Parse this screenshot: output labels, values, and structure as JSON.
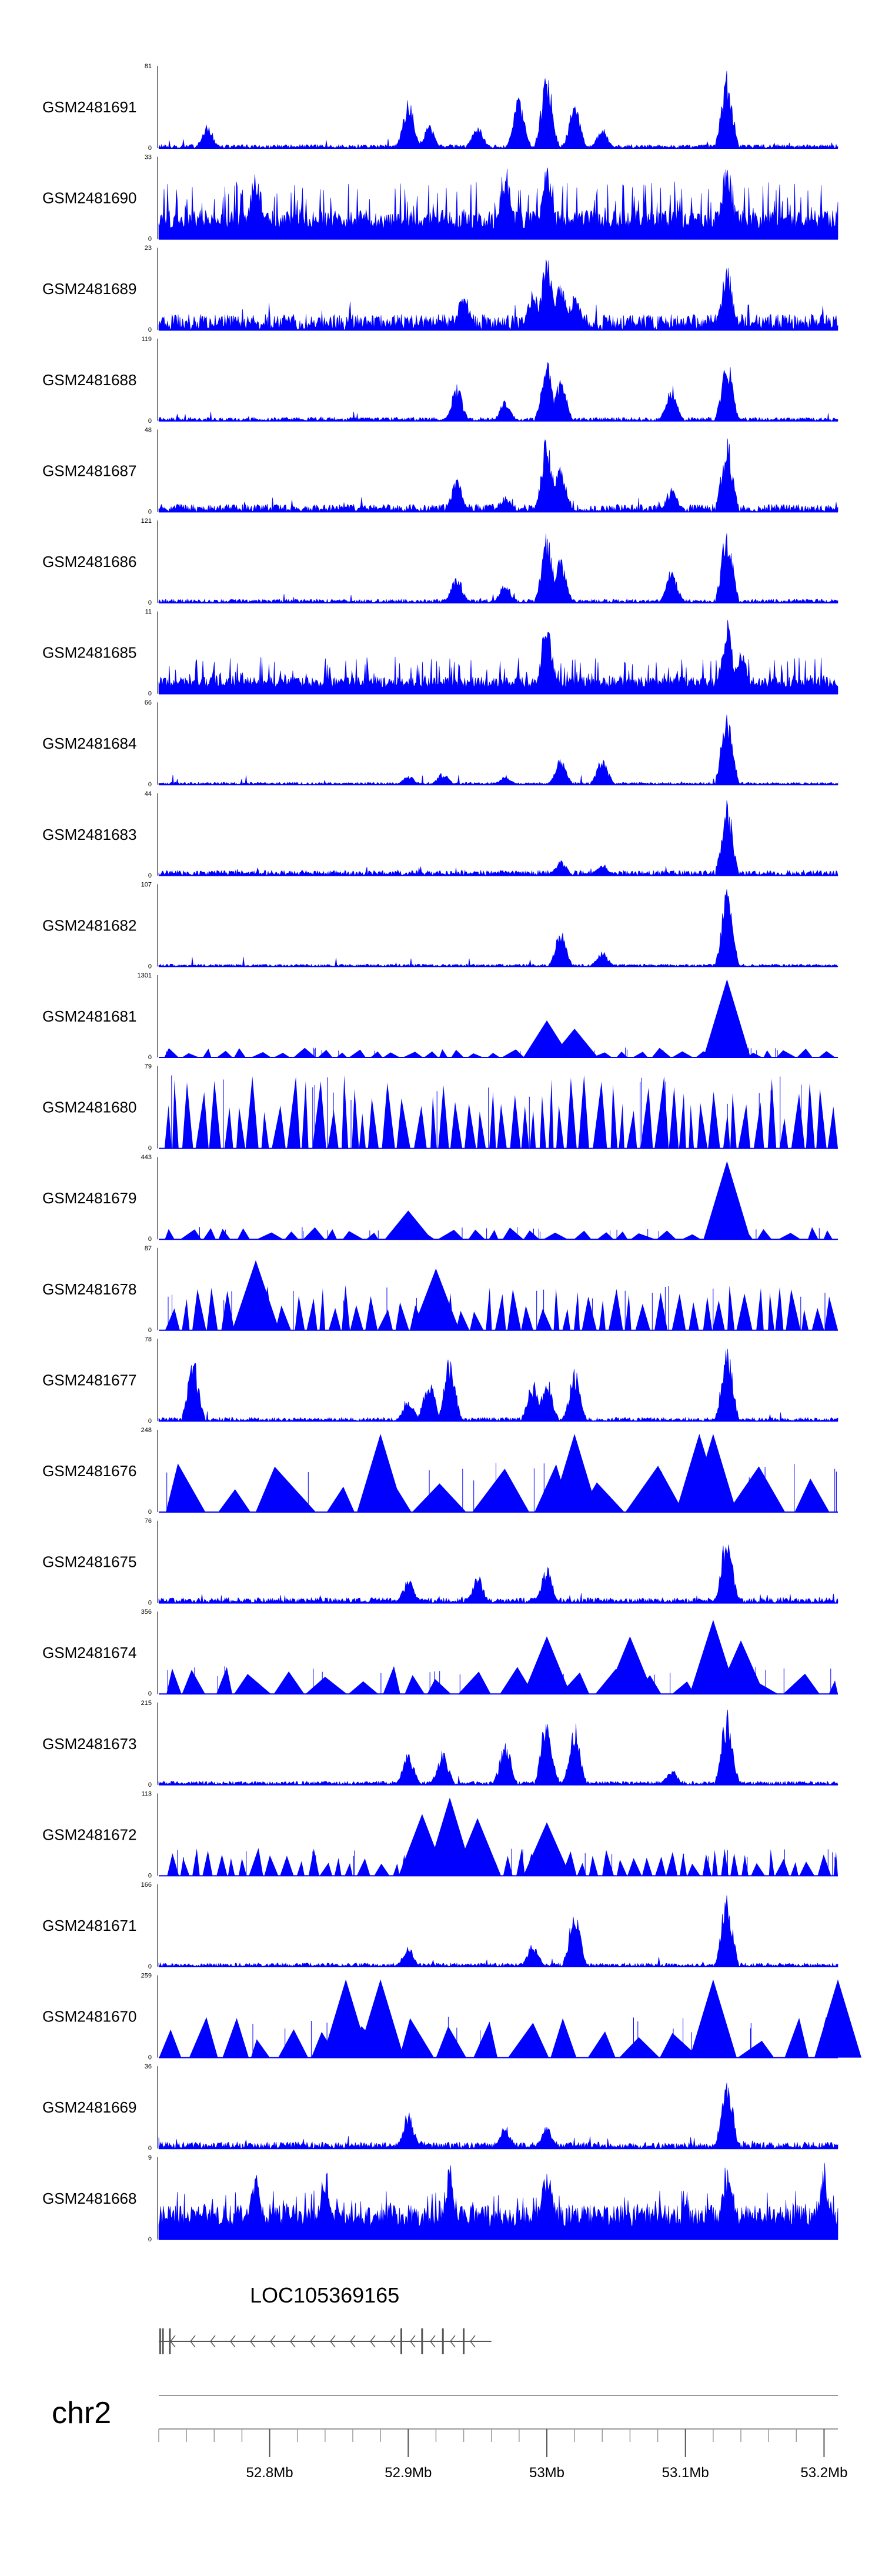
{
  "chart_data": {
    "type": "genome-browser-coverage",
    "chromosome": "chr2",
    "x_range_mb": [
      52.72,
      53.21
    ],
    "track_color": "#0000ff",
    "tracks": [
      {
        "sample": "GSM2481691",
        "ymax": "81",
        "ymin": "0",
        "style": "peaks",
        "baseline": 0.03,
        "peaks": [
          [
            52.9,
            0.62
          ],
          [
            52.915,
            0.3
          ],
          [
            52.95,
            0.3
          ],
          [
            52.98,
            0.65
          ],
          [
            53.0,
            0.95
          ],
          [
            53.02,
            0.6
          ],
          [
            53.13,
            0.95
          ],
          [
            52.755,
            0.3
          ],
          [
            53.04,
            0.25
          ]
        ]
      },
      {
        "sample": "GSM2481690",
        "ymax": "33",
        "ymin": "0",
        "style": "dense",
        "baseline": 0.25,
        "fill": 0.7,
        "peaks": [
          [
            52.79,
            0.95
          ],
          [
            52.97,
            0.95
          ],
          [
            53.0,
            0.95
          ],
          [
            53.13,
            0.95
          ]
        ]
      },
      {
        "sample": "GSM2481689",
        "ymax": "23",
        "ymin": "0",
        "style": "noise",
        "baseline": 0.12,
        "peaks": [
          [
            53.0,
            0.95
          ],
          [
            53.01,
            0.65
          ],
          [
            53.13,
            0.8
          ],
          [
            52.94,
            0.5
          ],
          [
            52.99,
            0.5
          ],
          [
            53.02,
            0.5
          ]
        ]
      },
      {
        "sample": "GSM2481688",
        "ymax": "119",
        "ymin": "0",
        "style": "peaks",
        "baseline": 0.03,
        "peaks": [
          [
            52.935,
            0.45
          ],
          [
            52.97,
            0.25
          ],
          [
            53.0,
            0.75
          ],
          [
            53.01,
            0.55
          ],
          [
            53.09,
            0.45
          ],
          [
            53.13,
            0.8
          ]
        ]
      },
      {
        "sample": "GSM2481687",
        "ymax": "48",
        "ymin": "0",
        "style": "noise",
        "baseline": 0.06,
        "peaks": [
          [
            52.935,
            0.4
          ],
          [
            52.97,
            0.2
          ],
          [
            53.0,
            0.95
          ],
          [
            53.01,
            0.6
          ],
          [
            53.09,
            0.3
          ],
          [
            53.13,
            0.95
          ]
        ]
      },
      {
        "sample": "GSM2481686",
        "ymax": "121",
        "ymin": "0",
        "style": "peaks",
        "baseline": 0.03,
        "peaks": [
          [
            52.935,
            0.35
          ],
          [
            52.97,
            0.25
          ],
          [
            53.0,
            0.85
          ],
          [
            53.01,
            0.55
          ],
          [
            53.09,
            0.45
          ],
          [
            53.13,
            0.95
          ]
        ]
      },
      {
        "sample": "GSM2481685",
        "ymax": "11",
        "ymin": "0",
        "style": "dense",
        "baseline": 0.15,
        "fill": 0.45,
        "peaks": [
          [
            53.0,
            0.95
          ],
          [
            53.13,
            0.95
          ],
          [
            53.14,
            0.6
          ]
        ]
      },
      {
        "sample": "GSM2481684",
        "ymax": "66",
        "ymin": "0",
        "style": "peaks",
        "baseline": 0.02,
        "peaks": [
          [
            52.9,
            0.12
          ],
          [
            52.925,
            0.15
          ],
          [
            52.97,
            0.12
          ],
          [
            53.01,
            0.35
          ],
          [
            53.04,
            0.35
          ],
          [
            53.13,
            0.95
          ]
        ]
      },
      {
        "sample": "GSM2481683",
        "ymax": "44",
        "ymin": "0",
        "style": "noise",
        "baseline": 0.04,
        "peaks": [
          [
            53.01,
            0.2
          ],
          [
            53.04,
            0.15
          ],
          [
            53.13,
            0.95
          ]
        ]
      },
      {
        "sample": "GSM2481682",
        "ymax": "107",
        "ymin": "0",
        "style": "peaks",
        "baseline": 0.02,
        "peaks": [
          [
            53.01,
            0.45
          ],
          [
            53.04,
            0.2
          ],
          [
            53.13,
            0.95
          ]
        ]
      },
      {
        "sample": "GSM2481681",
        "ymax": "1301",
        "ymin": "0",
        "style": "triangles",
        "count": 44,
        "tmax": 0.12,
        "peaks": [
          [
            53.0,
            0.45
          ],
          [
            53.02,
            0.35
          ],
          [
            53.13,
            0.95
          ]
        ]
      },
      {
        "sample": "GSM2481680",
        "ymax": "79",
        "ymin": "0",
        "style": "triangles",
        "count": 70,
        "tmax": 0.9,
        "peaks": []
      },
      {
        "sample": "GSM2481679",
        "ymax": "443",
        "ymin": "0",
        "style": "triangles",
        "count": 38,
        "tmax": 0.15,
        "peaks": [
          [
            52.9,
            0.35
          ],
          [
            53.13,
            0.95
          ]
        ]
      },
      {
        "sample": "GSM2481678",
        "ymax": "87",
        "ymin": "0",
        "style": "triangles",
        "count": 62,
        "tmax": 0.55,
        "peaks": [
          [
            52.79,
            0.85
          ],
          [
            52.92,
            0.75
          ]
        ]
      },
      {
        "sample": "GSM2481677",
        "ymax": "78",
        "ymin": "0",
        "style": "peaks",
        "baseline": 0.03,
        "peaks": [
          [
            52.745,
            0.8
          ],
          [
            52.9,
            0.3
          ],
          [
            52.915,
            0.55
          ],
          [
            52.93,
            0.8
          ],
          [
            52.99,
            0.5
          ],
          [
            53.0,
            0.55
          ],
          [
            53.02,
            0.65
          ],
          [
            53.13,
            0.95
          ]
        ]
      },
      {
        "sample": "GSM2481676",
        "ymax": "248",
        "ymin": "0",
        "style": "triangles",
        "count": 16,
        "tmax": 0.6,
        "peaks": [
          [
            52.88,
            0.95
          ],
          [
            53.02,
            0.95
          ],
          [
            53.11,
            0.95
          ],
          [
            53.12,
            0.95
          ]
        ]
      },
      {
        "sample": "GSM2481675",
        "ymax": "76",
        "ymin": "0",
        "style": "noise",
        "baseline": 0.04,
        "peaks": [
          [
            52.9,
            0.3
          ],
          [
            52.95,
            0.35
          ],
          [
            53.0,
            0.45
          ],
          [
            53.13,
            0.95
          ]
        ]
      },
      {
        "sample": "GSM2481674",
        "ymax": "356",
        "ymin": "0",
        "style": "triangles",
        "count": 24,
        "tmax": 0.35,
        "peaks": [
          [
            53.0,
            0.7
          ],
          [
            53.06,
            0.7
          ],
          [
            53.12,
            0.9
          ],
          [
            53.14,
            0.65
          ]
        ]
      },
      {
        "sample": "GSM2481673",
        "ymax": "215",
        "ymin": "0",
        "style": "peaks",
        "baseline": 0.03,
        "peaks": [
          [
            52.9,
            0.4
          ],
          [
            52.925,
            0.45
          ],
          [
            52.97,
            0.55
          ],
          [
            53.0,
            0.95
          ],
          [
            53.02,
            0.8
          ],
          [
            53.09,
            0.2
          ],
          [
            53.13,
            0.95
          ]
        ]
      },
      {
        "sample": "GSM2481672",
        "ymax": "113",
        "ymin": "0",
        "style": "triangles",
        "count": 65,
        "tmax": 0.35,
        "peaks": [
          [
            52.91,
            0.75
          ],
          [
            52.93,
            0.95
          ],
          [
            52.95,
            0.7
          ],
          [
            53.0,
            0.65
          ]
        ]
      },
      {
        "sample": "GSM2481671",
        "ymax": "166",
        "ymin": "0",
        "style": "peaks",
        "baseline": 0.03,
        "peaks": [
          [
            52.9,
            0.25
          ],
          [
            52.99,
            0.3
          ],
          [
            53.02,
            0.75
          ],
          [
            53.13,
            0.95
          ]
        ]
      },
      {
        "sample": "GSM2481670",
        "ymax": "259",
        "ymin": "0",
        "style": "triangles",
        "count": 22,
        "tmax": 0.5,
        "peaks": [
          [
            52.855,
            0.95
          ],
          [
            52.88,
            0.95
          ],
          [
            53.12,
            0.95
          ],
          [
            53.21,
            0.95
          ]
        ]
      },
      {
        "sample": "GSM2481669",
        "ymax": "36",
        "ymin": "0",
        "style": "noise",
        "baseline": 0.05,
        "peaks": [
          [
            52.9,
            0.45
          ],
          [
            52.97,
            0.3
          ],
          [
            53.0,
            0.3
          ],
          [
            53.13,
            0.95
          ]
        ]
      },
      {
        "sample": "GSM2481668",
        "ymax": "9",
        "ymin": "0",
        "style": "dense",
        "baseline": 0.3,
        "fill": 0.6,
        "peaks": [
          [
            52.79,
            0.95
          ],
          [
            52.84,
            0.95
          ],
          [
            52.93,
            0.95
          ],
          [
            53.0,
            0.95
          ],
          [
            53.13,
            0.95
          ],
          [
            53.2,
            0.95
          ]
        ]
      }
    ],
    "gene": {
      "name": "LOC105369165",
      "start_mb": 52.72,
      "end_mb": 52.96,
      "strand": "-",
      "exons_mb": [
        52.721,
        52.723,
        52.728,
        52.895,
        52.91,
        52.925,
        52.94
      ]
    },
    "axis": {
      "ticks_mb": [
        52.8,
        52.9,
        53.0,
        53.1,
        53.2
      ],
      "tick_labels": [
        "52.8Mb",
        "52.9Mb",
        "53Mb",
        "53.1Mb",
        "53.2Mb"
      ],
      "minor_step_mb": 0.02
    }
  }
}
